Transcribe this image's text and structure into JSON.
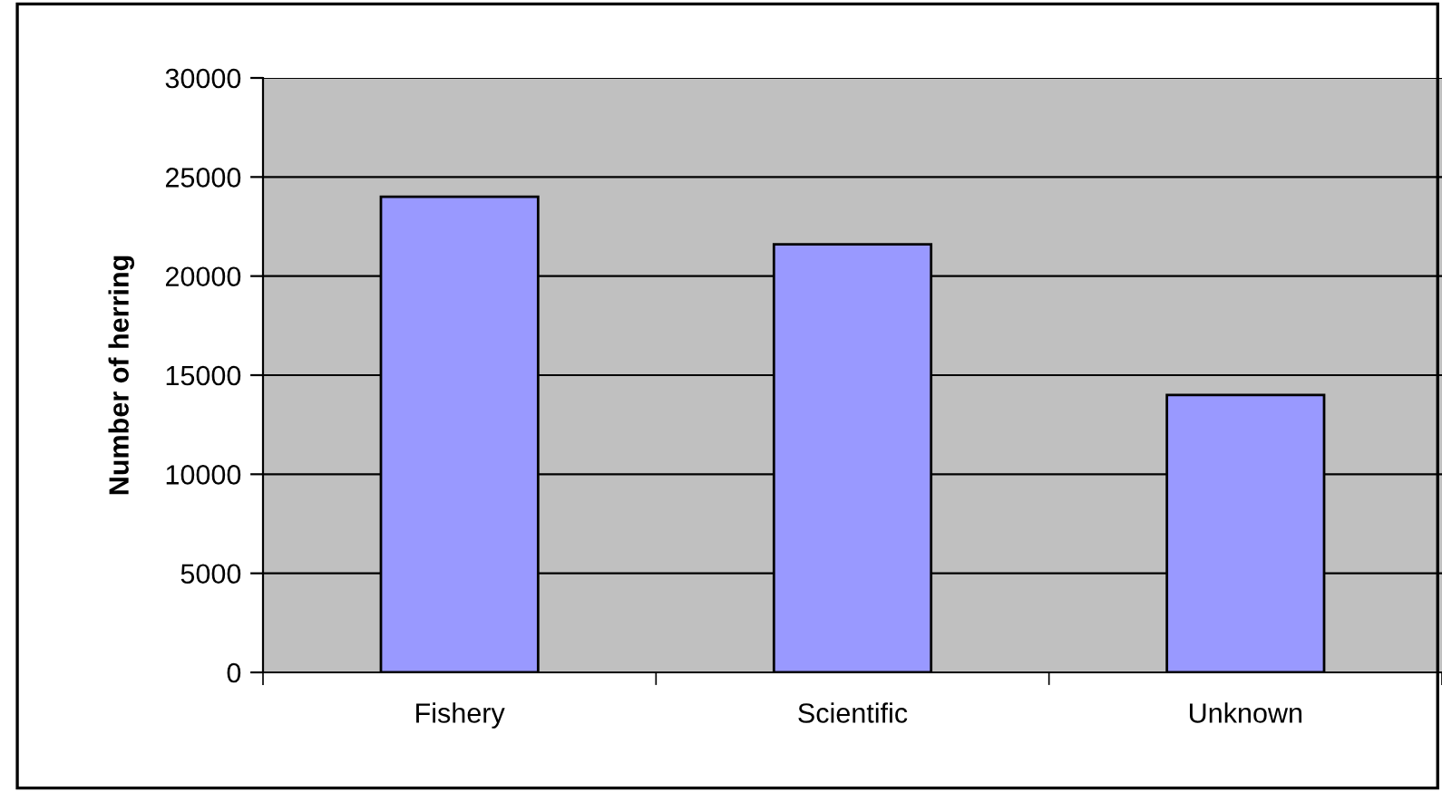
{
  "chart_data": {
    "type": "bar",
    "ylabel": "Number of herring",
    "categories": [
      "Fishery",
      "Scientific",
      "Unknown"
    ],
    "values": [
      24000,
      21600,
      14000
    ],
    "color": "#9999ff",
    "ylim": [
      0,
      30000
    ],
    "yticks": [
      0,
      5000,
      10000,
      15000,
      20000,
      25000,
      30000
    ],
    "grid": "y",
    "legend": false
  }
}
